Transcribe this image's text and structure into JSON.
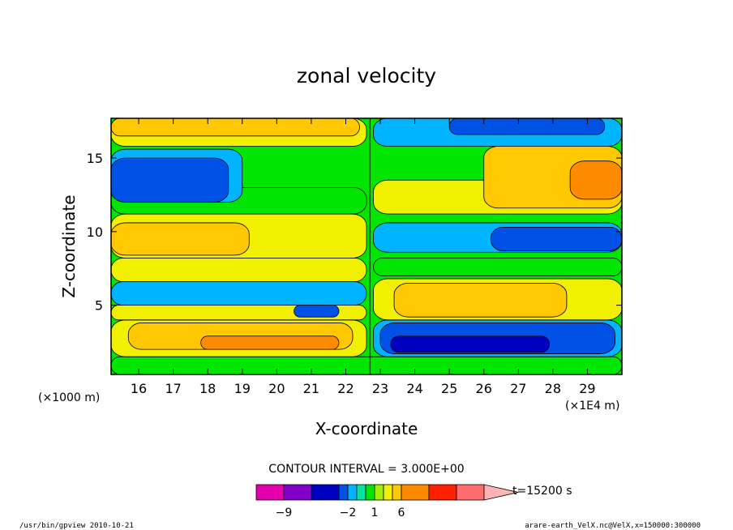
{
  "chart_data": {
    "type": "heatmap",
    "title": "zonal velocity",
    "xlabel": "X-coordinate",
    "ylabel": "Z-coordinate",
    "x_unit_note": "(×1000 m)",
    "x_unit_note2": "(×1E4 m)",
    "xlim": [
      15.2,
      30.0
    ],
    "ylim": [
      0.3,
      17.7
    ],
    "x_ticks": [
      16,
      17,
      18,
      19,
      20,
      21,
      22,
      23,
      24,
      25,
      26,
      27,
      28,
      29
    ],
    "y_ticks": [
      5,
      10,
      15
    ],
    "contour_interval_text": "CONTOUR INTERVAL = 3.000E+00",
    "time_label": "t=15200 s",
    "colorbar_labels": [
      {
        "value": -9,
        "text": "−9"
      },
      {
        "value": -2,
        "text": "−2"
      },
      {
        "value": 1,
        "text": "1"
      },
      {
        "value": 6,
        "text": "6"
      }
    ],
    "colorbar_levels": [
      -12,
      -9,
      -6,
      -3,
      -2,
      -1,
      0,
      1,
      2,
      3,
      6,
      9,
      12
    ],
    "colorbar_colors": [
      "#e600ad",
      "#8200c8",
      "#0000c0",
      "#0052e6",
      "#00b4ff",
      "#00e6a0",
      "#00e600",
      "#a0f000",
      "#f0f000",
      "#ffc800",
      "#ff8c00",
      "#ff2000",
      "#ff6e6e",
      "#ffb4b4"
    ],
    "footer_left": "/usr/bin/gpview   2010-10-21",
    "footer_right": "arare-earth_VelX.nc@VelX,x=150000:300000",
    "regions": [
      {
        "z": [
          0.3,
          1.5
        ],
        "x": [
          15.2,
          30.0
        ],
        "level": 0
      },
      {
        "z": [
          1.5,
          4.0
        ],
        "x": [
          15.2,
          22.6
        ],
        "level": 1
      },
      {
        "z": [
          2.0,
          3.8
        ],
        "x": [
          15.7,
          22.2
        ],
        "level": 2
      },
      {
        "z": [
          2.0,
          2.9
        ],
        "x": [
          17.8,
          21.8
        ],
        "level": 3
      },
      {
        "z": [
          1.5,
          4.0
        ],
        "x": [
          22.8,
          30.0
        ],
        "level": -1
      },
      {
        "z": [
          1.7,
          3.8
        ],
        "x": [
          23.0,
          29.8
        ],
        "level": -2
      },
      {
        "z": [
          1.8,
          2.9
        ],
        "x": [
          23.3,
          27.9
        ],
        "level": -3
      },
      {
        "z": [
          4.0,
          5.0
        ],
        "x": [
          15.2,
          22.6
        ],
        "level": 1
      },
      {
        "z": [
          5.0,
          6.6
        ],
        "x": [
          15.2,
          22.6
        ],
        "level": -1
      },
      {
        "z": [
          4.2,
          5.0
        ],
        "x": [
          20.5,
          21.8
        ],
        "level": -2
      },
      {
        "z": [
          4.0,
          6.8
        ],
        "x": [
          22.8,
          30.0
        ],
        "level": 1
      },
      {
        "z": [
          4.2,
          6.5
        ],
        "x": [
          23.4,
          28.4
        ],
        "level": 2
      },
      {
        "z": [
          6.6,
          8.2
        ],
        "x": [
          15.2,
          22.6
        ],
        "level": 1
      },
      {
        "z": [
          7.0,
          8.2
        ],
        "x": [
          22.8,
          30.0
        ],
        "level": 0
      },
      {
        "z": [
          8.2,
          11.2
        ],
        "x": [
          15.2,
          22.6
        ],
        "level": 1
      },
      {
        "z": [
          8.4,
          10.6
        ],
        "x": [
          15.2,
          19.2
        ],
        "level": 2
      },
      {
        "z": [
          8.6,
          10.6
        ],
        "x": [
          22.8,
          30.0
        ],
        "level": -1
      },
      {
        "z": [
          8.7,
          10.3
        ],
        "x": [
          26.2,
          30.0
        ],
        "level": -2
      },
      {
        "z": [
          11.2,
          13.0
        ],
        "x": [
          15.2,
          22.6
        ],
        "level": 0
      },
      {
        "z": [
          12.0,
          15.6
        ],
        "x": [
          15.2,
          19.0
        ],
        "level": -1
      },
      {
        "z": [
          12.0,
          15.0
        ],
        "x": [
          15.2,
          18.6
        ],
        "level": -2
      },
      {
        "z": [
          11.2,
          13.5
        ],
        "x": [
          22.8,
          30.0
        ],
        "level": 1
      },
      {
        "z": [
          11.6,
          15.8
        ],
        "x": [
          26.0,
          30.0
        ],
        "level": 2
      },
      {
        "z": [
          12.2,
          14.8
        ],
        "x": [
          28.5,
          30.0
        ],
        "level": 3
      },
      {
        "z": [
          15.8,
          17.7
        ],
        "x": [
          15.2,
          22.6
        ],
        "level": 1
      },
      {
        "z": [
          16.5,
          17.7
        ],
        "x": [
          15.2,
          22.4
        ],
        "level": 2
      },
      {
        "z": [
          15.8,
          17.7
        ],
        "x": [
          22.8,
          30.0
        ],
        "level": -1
      },
      {
        "z": [
          16.6,
          17.7
        ],
        "x": [
          25.0,
          29.5
        ],
        "level": -2
      }
    ]
  }
}
